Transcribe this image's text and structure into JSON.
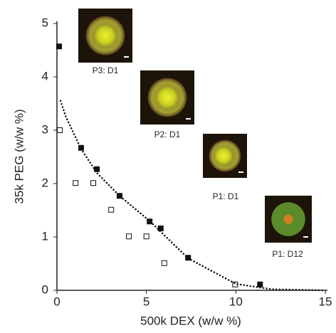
{
  "chart_data": {
    "type": "scatter",
    "xlabel": "500k DEX (w/w %)",
    "ylabel": "35k PEG (w/w %)",
    "xlim": [
      0,
      15
    ],
    "ylim": [
      0,
      5
    ],
    "xticks": [
      0,
      5,
      10,
      15
    ],
    "yticks": [
      0,
      1,
      2,
      3,
      4,
      5
    ],
    "series": [
      {
        "marker": "filled-square",
        "color": "#111111",
        "x": [
          0.12,
          1.35,
          2.23,
          3.5,
          5.18,
          5.8,
          7.33,
          11.35
        ],
        "values": [
          4.57,
          2.67,
          2.27,
          1.77,
          1.29,
          1.16,
          0.61,
          0.11
        ]
      },
      {
        "marker": "open-square",
        "color": "#111111",
        "x": [
          0.16,
          1.04,
          2.03,
          3.03,
          4.02,
          5.0,
          6.0,
          9.96
        ],
        "values": [
          3.0,
          2.01,
          2.01,
          1.51,
          1.01,
          1.01,
          0.51,
          0.11
        ]
      },
      {
        "marker": "dotted-line",
        "color": "#111111",
        "x": [
          0.2,
          0.5,
          1.35,
          2.23,
          3.5,
          5.18,
          7.33,
          10,
          12,
          15
        ],
        "values": [
          3.55,
          3.25,
          2.65,
          2.2,
          1.77,
          1.3,
          0.6,
          0.12,
          0.02,
          0
        ]
      }
    ],
    "annotations": [
      "P3: D1",
      "P2: D1",
      "P1: D1",
      "P1: D12"
    ]
  }
}
